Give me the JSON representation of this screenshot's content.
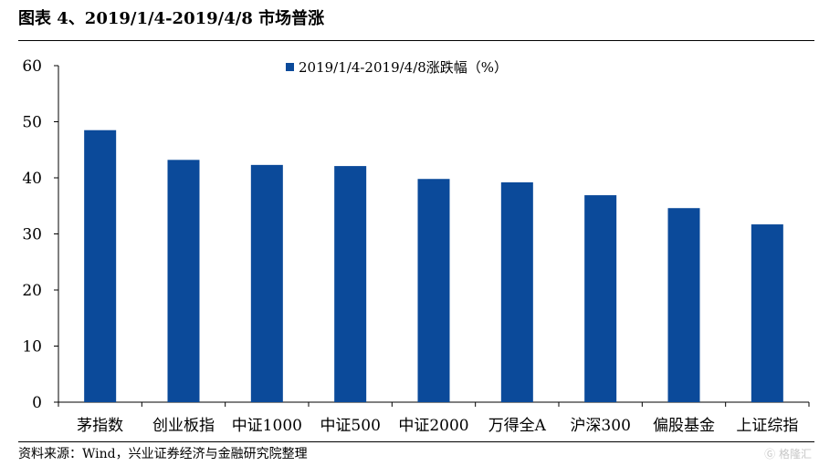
{
  "figure": {
    "title": "图表 4、2019/1/4-2019/4/8 市场普涨",
    "source": "资料来源：Wind，兴业证券经济与金融研究院整理",
    "watermark": "格隆汇"
  },
  "chart_data": {
    "type": "bar",
    "categories": [
      "茅指数",
      "创业板指",
      "中证1000",
      "中证500",
      "中证2000",
      "万得全A",
      "沪深300",
      "偏股基金",
      "上证综指"
    ],
    "series": [
      {
        "name": "2019/1/4-2019/4/8涨跌幅（%）",
        "values": [
          48.5,
          43.2,
          42.3,
          42.1,
          39.8,
          39.2,
          36.9,
          34.6,
          31.7
        ],
        "color": "#0b4a9a"
      }
    ],
    "ylim": [
      0,
      60
    ],
    "yticks": [
      0,
      10,
      20,
      30,
      40,
      50,
      60
    ],
    "grid": false,
    "legend": "top-center"
  }
}
